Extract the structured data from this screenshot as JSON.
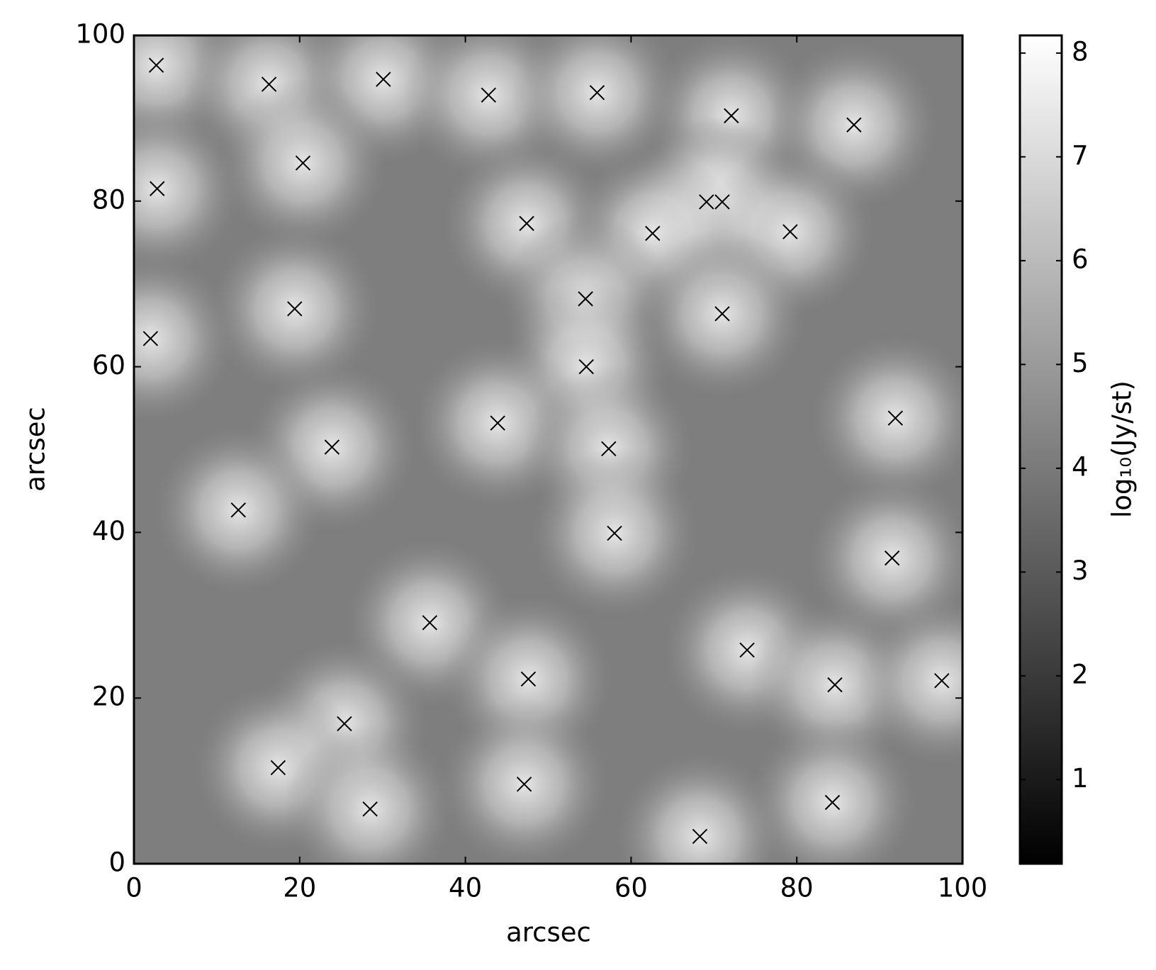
{
  "chart_data": {
    "type": "scatter",
    "xlabel": "arcsec",
    "ylabel": "arcsec",
    "xlim": [
      0,
      100
    ],
    "ylim": [
      0,
      100
    ],
    "xticks": [
      0,
      20,
      40,
      60,
      80,
      100
    ],
    "yticks": [
      0,
      20,
      40,
      60,
      80,
      100
    ],
    "marker": "x",
    "color": "#000000",
    "background_colormap": "gray",
    "x": [
      2.7,
      16.3,
      30.1,
      42.8,
      55.9,
      72.1,
      86.9,
      20.4,
      2.8,
      69.1,
      71.0,
      47.4,
      62.6,
      79.2,
      54.5,
      19.4,
      71.0,
      2.0,
      54.6,
      91.9,
      43.9,
      23.9,
      57.3,
      12.6,
      58.0,
      91.5,
      35.7,
      74.0,
      47.6,
      84.6,
      97.5,
      25.4,
      17.4,
      47.1,
      28.5,
      84.3,
      68.3
    ],
    "values": [
      96.4,
      94.1,
      94.7,
      92.8,
      93.1,
      90.3,
      89.2,
      84.6,
      81.5,
      79.9,
      79.9,
      77.3,
      76.1,
      76.3,
      68.2,
      67.0,
      66.4,
      63.4,
      60.0,
      53.8,
      53.2,
      50.3,
      50.1,
      42.7,
      39.9,
      36.9,
      29.1,
      25.8,
      22.3,
      21.6,
      22.1,
      16.9,
      11.6,
      9.6,
      6.6,
      7.4,
      3.3
    ],
    "colorbar": {
      "label": "log₁₀(Jy/st)",
      "colormap": "gray",
      "lim": [
        0.19,
        8.17
      ],
      "ticks": [
        1,
        2,
        3,
        4,
        5,
        6,
        7,
        8
      ]
    }
  }
}
